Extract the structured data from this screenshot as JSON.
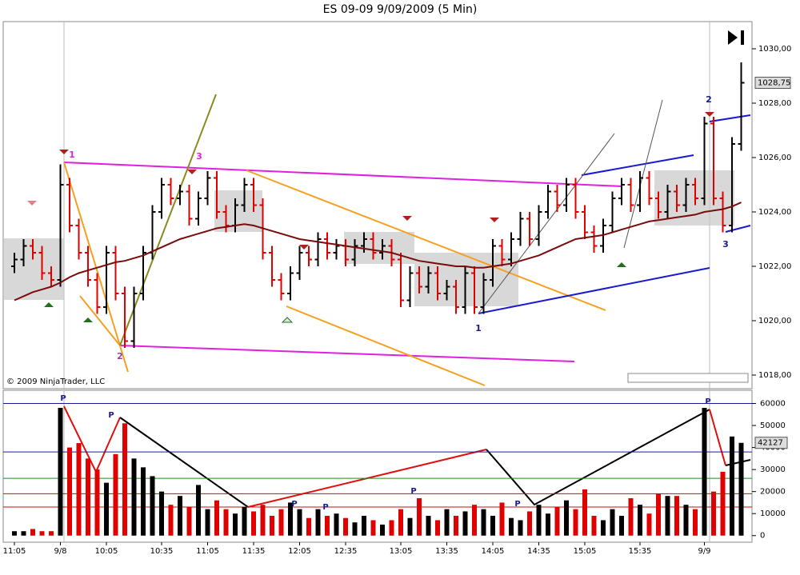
{
  "chart_data": [
    {
      "type": "ohlc",
      "title": "ES 09-09  9/09/2009 (5 Min)",
      "copyright": "© 2009 NinjaTrader, LLC",
      "up_color": "#000000",
      "down_color": "#e00000",
      "ma_color": "#7a0c0c",
      "open": [
        1022.0,
        1022.25,
        1022.75,
        1022.5,
        1021.75,
        1021.5,
        1025.0,
        1023.5,
        1022.5,
        1021.5,
        1020.5,
        1022.5,
        1021.0,
        1019.25,
        1021.0,
        1022.5,
        1024.0,
        1025.0,
        1024.5,
        1024.75,
        1023.75,
        1024.5,
        1025.25,
        1024.0,
        1023.5,
        1024.25,
        1025.0,
        1024.25,
        1022.5,
        1021.5,
        1021.0,
        1021.75,
        1022.5,
        1022.25,
        1023.0,
        1022.5,
        1022.75,
        1022.25,
        1022.75,
        1023.0,
        1022.5,
        1022.75,
        1022.25,
        1020.75,
        1021.75,
        1021.25,
        1021.75,
        1021.0,
        1021.25,
        1020.5,
        1021.75,
        1020.5,
        1021.5,
        1022.75,
        1022.25,
        1023.0,
        1023.75,
        1023.0,
        1024.0,
        1024.75,
        1024.25,
        1025.0,
        1024.0,
        1023.25,
        1022.75,
        1023.5,
        1024.5,
        1025.0,
        1024.25,
        1025.25,
        1024.5,
        1024.0,
        1024.75,
        1024.25,
        1025.0,
        1024.5,
        1027.25,
        1024.5,
        1023.5,
        1026.5
      ],
      "high": [
        1022.5,
        1023.0,
        1023.0,
        1022.75,
        1022.0,
        1025.75,
        1025.25,
        1023.75,
        1022.75,
        1021.75,
        1022.75,
        1022.75,
        1021.25,
        1021.25,
        1022.75,
        1024.25,
        1025.25,
        1025.25,
        1025.0,
        1025.0,
        1024.75,
        1025.5,
        1025.5,
        1024.25,
        1024.5,
        1025.25,
        1025.25,
        1024.5,
        1022.75,
        1021.75,
        1022.0,
        1022.75,
        1022.75,
        1023.25,
        1023.25,
        1023.0,
        1023.0,
        1023.0,
        1023.25,
        1023.25,
        1023.0,
        1023.0,
        1022.5,
        1022.0,
        1022.0,
        1022.0,
        1022.0,
        1021.5,
        1021.5,
        1022.0,
        1022.0,
        1021.75,
        1023.0,
        1023.0,
        1023.25,
        1024.0,
        1024.0,
        1024.25,
        1025.0,
        1025.0,
        1025.25,
        1025.25,
        1024.25,
        1023.5,
        1023.75,
        1024.75,
        1025.25,
        1025.25,
        1025.5,
        1025.5,
        1024.75,
        1025.0,
        1025.0,
        1025.25,
        1025.25,
        1027.5,
        1027.5,
        1024.75,
        1026.75,
        1029.5
      ],
      "low": [
        1021.75,
        1022.0,
        1022.25,
        1021.5,
        1021.25,
        1021.25,
        1023.25,
        1022.25,
        1021.25,
        1020.25,
        1020.25,
        1020.75,
        1019.0,
        1019.0,
        1020.75,
        1022.25,
        1023.75,
        1024.25,
        1024.25,
        1023.5,
        1023.5,
        1024.25,
        1023.75,
        1023.25,
        1023.25,
        1024.0,
        1024.0,
        1022.25,
        1021.25,
        1020.75,
        1020.75,
        1021.5,
        1022.0,
        1022.0,
        1022.25,
        1022.25,
        1022.0,
        1022.0,
        1022.5,
        1022.25,
        1022.25,
        1022.0,
        1020.5,
        1020.5,
        1021.0,
        1021.0,
        1020.75,
        1020.75,
        1020.25,
        1020.25,
        1020.25,
        1020.25,
        1021.25,
        1022.0,
        1022.0,
        1022.75,
        1022.75,
        1022.75,
        1023.75,
        1024.0,
        1024.0,
        1023.75,
        1023.0,
        1022.5,
        1022.5,
        1023.25,
        1024.25,
        1024.0,
        1024.0,
        1024.25,
        1023.75,
        1023.75,
        1024.0,
        1024.0,
        1024.25,
        1024.25,
        1024.25,
        1023.25,
        1023.25,
        1026.25
      ],
      "close": [
        1022.25,
        1022.75,
        1022.5,
        1021.75,
        1021.5,
        1025.0,
        1023.5,
        1022.5,
        1021.5,
        1020.5,
        1022.5,
        1021.0,
        1019.25,
        1021.0,
        1022.5,
        1024.0,
        1025.0,
        1024.5,
        1024.75,
        1023.75,
        1024.5,
        1025.25,
        1024.0,
        1023.5,
        1024.25,
        1025.0,
        1024.25,
        1022.5,
        1021.5,
        1021.0,
        1021.75,
        1022.5,
        1022.25,
        1023.0,
        1022.5,
        1022.75,
        1022.25,
        1022.75,
        1023.0,
        1022.5,
        1022.75,
        1022.25,
        1020.75,
        1021.75,
        1021.25,
        1021.75,
        1021.0,
        1021.25,
        1020.5,
        1021.75,
        1020.5,
        1021.5,
        1022.75,
        1022.25,
        1023.0,
        1023.75,
        1023.0,
        1024.0,
        1024.75,
        1024.25,
        1025.0,
        1024.0,
        1023.25,
        1022.75,
        1023.5,
        1024.5,
        1025.0,
        1024.25,
        1025.25,
        1024.5,
        1024.0,
        1024.75,
        1024.25,
        1025.0,
        1024.5,
        1027.25,
        1024.5,
        1023.5,
        1026.5,
        1028.75
      ],
      "moving_average": [
        1020.75,
        1020.9,
        1021.05,
        1021.15,
        1021.25,
        1021.4,
        1021.6,
        1021.75,
        1021.85,
        1021.95,
        1022.05,
        1022.15,
        1022.2,
        1022.3,
        1022.4,
        1022.55,
        1022.7,
        1022.85,
        1023.0,
        1023.1,
        1023.2,
        1023.3,
        1023.4,
        1023.45,
        1023.5,
        1023.55,
        1023.5,
        1023.4,
        1023.3,
        1023.2,
        1023.1,
        1023.0,
        1022.95,
        1022.9,
        1022.85,
        1022.8,
        1022.75,
        1022.7,
        1022.65,
        1022.6,
        1022.55,
        1022.5,
        1022.4,
        1022.3,
        1022.2,
        1022.15,
        1022.1,
        1022.05,
        1022.0,
        1022.0,
        1021.95,
        1021.95,
        1022.0,
        1022.05,
        1022.1,
        1022.2,
        1022.3,
        1022.4,
        1022.55,
        1022.7,
        1022.85,
        1023.0,
        1023.05,
        1023.1,
        1023.15,
        1023.25,
        1023.35,
        1023.45,
        1023.55,
        1023.65,
        1023.7,
        1023.75,
        1023.8,
        1023.85,
        1023.9,
        1024.0,
        1024.05,
        1024.1,
        1024.2,
        1024.35
      ],
      "last_price_label": "1028,75",
      "ylim": [
        1017.5,
        1031.0
      ],
      "yticks": [
        {
          "value": 1018,
          "label": "1018,00"
        },
        {
          "value": 1020,
          "label": "1020,00"
        },
        {
          "value": 1022,
          "label": "1022,00"
        },
        {
          "value": 1024,
          "label": "1024,00"
        },
        {
          "value": 1026,
          "label": "1026,00"
        },
        {
          "value": 1028,
          "label": "1028,00"
        },
        {
          "value": 1030,
          "label": "1030,00"
        }
      ],
      "annotations": [
        "1",
        "2",
        "3",
        "1",
        "2",
        "3"
      ]
    },
    {
      "type": "bar",
      "categories": [
        "11:05",
        null,
        null,
        null,
        null,
        "9/8",
        null,
        null,
        null,
        null,
        "10:05",
        null,
        null,
        null,
        null,
        null,
        "10:35",
        null,
        null,
        null,
        null,
        "11:05",
        null,
        null,
        null,
        null,
        "11:35",
        null,
        null,
        null,
        null,
        "12:05",
        null,
        null,
        null,
        null,
        "12:35",
        null,
        null,
        null,
        null,
        null,
        "13:05",
        null,
        null,
        null,
        null,
        "13:35",
        null,
        null,
        null,
        null,
        "14:05",
        null,
        null,
        null,
        null,
        "14:35",
        null,
        null,
        null,
        null,
        "15:05",
        null,
        null,
        null,
        null,
        null,
        "15:35",
        null,
        null,
        null,
        null,
        null,
        null,
        "9/9",
        null,
        null,
        null,
        null
      ],
      "values": [
        2000,
        2000,
        3000,
        2000,
        2000,
        58000,
        40000,
        42000,
        35000,
        30000,
        24000,
        37000,
        51000,
        35000,
        31000,
        27000,
        20000,
        14000,
        18000,
        13000,
        23000,
        12000,
        16000,
        12000,
        10000,
        13000,
        11000,
        14000,
        9000,
        12000,
        15000,
        12000,
        8000,
        12000,
        9000,
        10000,
        8000,
        6000,
        9000,
        7000,
        5000,
        7000,
        12000,
        8000,
        17000,
        9000,
        7000,
        12000,
        9000,
        11000,
        14000,
        12000,
        9000,
        15000,
        8000,
        7000,
        11000,
        14000,
        10000,
        13000,
        16000,
        12000,
        21000,
        9000,
        7000,
        12000,
        9000,
        17000,
        14000,
        10000,
        19000,
        18000,
        18000,
        14000,
        12000,
        58000,
        20000,
        29000,
        45000,
        42127
      ],
      "ylim": [
        -3000,
        66000
      ],
      "yticks": [
        0,
        10000,
        20000,
        30000,
        40000,
        50000,
        60000
      ],
      "reference_lines": [
        {
          "value": 60000,
          "color": "#1a1aa0"
        },
        {
          "value": 38000,
          "color": "#1a1aa0"
        },
        {
          "value": 26000,
          "color": "#1f8a1f"
        },
        {
          "value": 19000,
          "color": "#c01010"
        },
        {
          "value": 13000,
          "color": "#c01010"
        }
      ],
      "markers": [
        "P",
        "P",
        "P",
        "P",
        "P",
        "P",
        "P"
      ]
    }
  ]
}
